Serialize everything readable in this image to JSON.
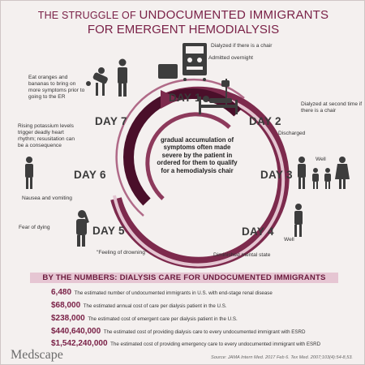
{
  "title": {
    "line1_part1": "THE STRUGGLE",
    "line1_part2": " OF ",
    "line1_part3": "UNDOCUMENTED IMMIGRANTS",
    "line2": "FOR EMERGENT HEMODIALYSIS"
  },
  "days": {
    "d1": "DAY 1",
    "d2": "DAY 2",
    "d3": "DAY 3",
    "d4": "DAY 4",
    "d5": "DAY 5",
    "d6": "DAY 6",
    "d7": "DAY 7"
  },
  "labels": {
    "dialyzed_chair": "Dialyzed if there is a chair",
    "admitted": "Admitted overnight",
    "dialyzed_second": "Dialyzed at second time if there is a chair",
    "discharged": "Discharged",
    "well1": "Well",
    "well2": "Well",
    "diminished": "Diminished mental state",
    "drowning": "\"Feeling of drowning\"",
    "fear": "Fear of dying",
    "nausea": "Nausea and vomiting",
    "potassium": "Rising potassium levels trigger deadly heart rhythm; resusitation can be a consequence",
    "oranges": "Eat oranges and bananas to bring on more symptoms prior to going to the ER"
  },
  "center_text": "gradual accumulation of symptoms often made severe by the patient in ordered for them to qualify for a hemodialysis chair",
  "numbers_header": "BY THE NUMBERS: DIALYSIS CARE FOR UNDOCUMENTED IMMIGRANTS",
  "numbers": [
    {
      "value": "6,480",
      "text": "The estimated number of undocumented immigrants in U.S. with end-stage renal disease"
    },
    {
      "value": "$68,000",
      "text": "The estimated annual cost of care per dialysis patient in the U.S."
    },
    {
      "value": "$238,000",
      "text": "The estimated cost of emergent care per dialysis patient in the U.S."
    },
    {
      "value": "$440,640,000",
      "text": "The estimated cost of providing dialysis care to every undocumented immigrant with ESRD"
    },
    {
      "value": "$1,542,240,000",
      "text": "The estimated cost of providing emergency care to every undocumented immigrant with ESRD"
    }
  ],
  "logo": "Medscape",
  "source": "Source: JAMA Intern Med. 2017 Feb 6. Tex Med. 2007;103(4):54-8,53.",
  "colors": {
    "brand": "#7a2147",
    "arc_dark": "#4a0f2a",
    "arc_mid": "#7d2a4d",
    "arc_light": "#c98aa4",
    "band": "#e6c6d3",
    "figure": "#3d3d3d"
  }
}
